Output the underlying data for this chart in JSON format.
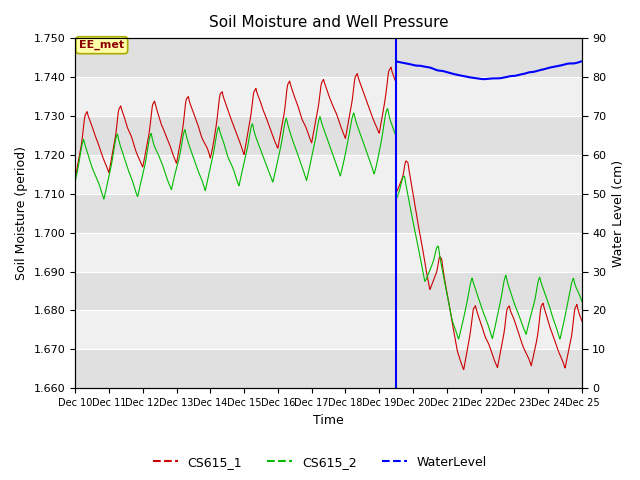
{
  "title": "Soil Moisture and Well Pressure",
  "xlabel": "Time",
  "ylabel_left": "Soil Moisture (period)",
  "ylabel_right": "Water Level (cm)",
  "ylim_left": [
    1.66,
    1.75
  ],
  "ylim_right": [
    0,
    90
  ],
  "yticks_left": [
    1.66,
    1.67,
    1.68,
    1.69,
    1.7,
    1.71,
    1.72,
    1.73,
    1.74,
    1.75
  ],
  "yticks_right": [
    0,
    10,
    20,
    30,
    40,
    50,
    60,
    70,
    80,
    90
  ],
  "xlim": [
    0,
    15
  ],
  "xtick_labels": [
    "Dec 10",
    "Dec 11",
    "Dec 12",
    "Dec 13",
    "Dec 14",
    "Dec 15",
    "Dec 16",
    "Dec 17",
    "Dec 18",
    "Dec 19",
    "Dec 20",
    "Dec 21",
    "Dec 22",
    "Dec 23",
    "Dec 24",
    "Dec 25"
  ],
  "vline_x": 9.5,
  "vline_color": "#0000FF",
  "color_cs1": "#CC0000",
  "color_cs2": "#00BB00",
  "color_water": "#0000FF",
  "annotation_text": "EE_met",
  "annotation_bg": "#FFFFAA",
  "annotation_edge": "#CCCC00",
  "legend_labels": [
    "CS615_1",
    "CS615_2",
    "WaterLevel"
  ],
  "band_colors": [
    "#E8E8E8",
    "#F8F8F8"
  ],
  "bg_color": "#F8F8F8"
}
